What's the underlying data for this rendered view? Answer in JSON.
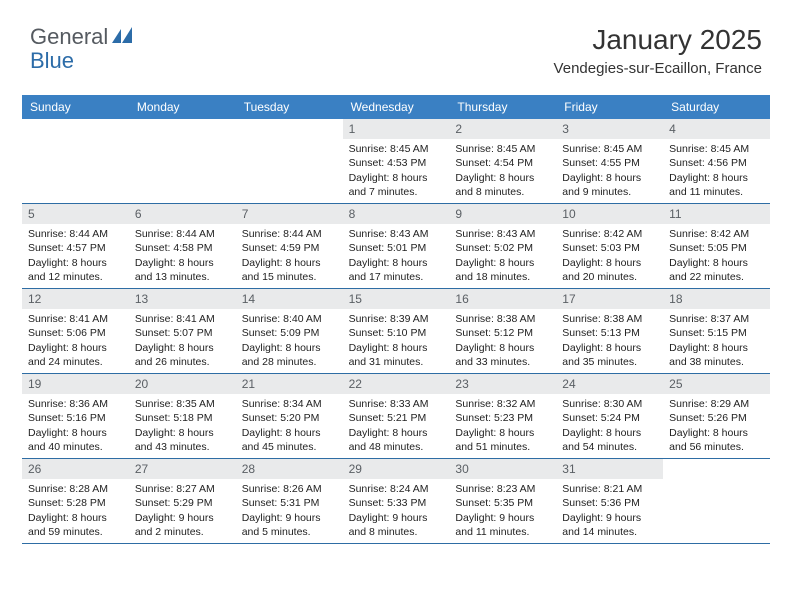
{
  "logo": {
    "general": "General",
    "blue": "Blue"
  },
  "title": "January 2025",
  "location": "Vendegies-sur-Ecaillon, France",
  "colors": {
    "header_bg": "#3a80c3",
    "header_text": "#ffffff",
    "daynum_bg": "#e9eaeb",
    "daynum_text": "#5a5f64",
    "border": "#2e6da4",
    "body_text": "#222222",
    "logo_gray": "#555a60",
    "logo_blue": "#2c6ca8"
  },
  "typography": {
    "title_fontsize": 28,
    "location_fontsize": 15,
    "dayheader_fontsize": 12,
    "daynum_fontsize": 12,
    "cell_fontsize": 10.5
  },
  "dayNames": [
    "Sunday",
    "Monday",
    "Tuesday",
    "Wednesday",
    "Thursday",
    "Friday",
    "Saturday"
  ],
  "weeks": [
    [
      {
        "n": "",
        "sr": "",
        "ss": "",
        "dl": ""
      },
      {
        "n": "",
        "sr": "",
        "ss": "",
        "dl": ""
      },
      {
        "n": "",
        "sr": "",
        "ss": "",
        "dl": ""
      },
      {
        "n": "1",
        "sr": "Sunrise: 8:45 AM",
        "ss": "Sunset: 4:53 PM",
        "dl": "Daylight: 8 hours and 7 minutes."
      },
      {
        "n": "2",
        "sr": "Sunrise: 8:45 AM",
        "ss": "Sunset: 4:54 PM",
        "dl": "Daylight: 8 hours and 8 minutes."
      },
      {
        "n": "3",
        "sr": "Sunrise: 8:45 AM",
        "ss": "Sunset: 4:55 PM",
        "dl": "Daylight: 8 hours and 9 minutes."
      },
      {
        "n": "4",
        "sr": "Sunrise: 8:45 AM",
        "ss": "Sunset: 4:56 PM",
        "dl": "Daylight: 8 hours and 11 minutes."
      }
    ],
    [
      {
        "n": "5",
        "sr": "Sunrise: 8:44 AM",
        "ss": "Sunset: 4:57 PM",
        "dl": "Daylight: 8 hours and 12 minutes."
      },
      {
        "n": "6",
        "sr": "Sunrise: 8:44 AM",
        "ss": "Sunset: 4:58 PM",
        "dl": "Daylight: 8 hours and 13 minutes."
      },
      {
        "n": "7",
        "sr": "Sunrise: 8:44 AM",
        "ss": "Sunset: 4:59 PM",
        "dl": "Daylight: 8 hours and 15 minutes."
      },
      {
        "n": "8",
        "sr": "Sunrise: 8:43 AM",
        "ss": "Sunset: 5:01 PM",
        "dl": "Daylight: 8 hours and 17 minutes."
      },
      {
        "n": "9",
        "sr": "Sunrise: 8:43 AM",
        "ss": "Sunset: 5:02 PM",
        "dl": "Daylight: 8 hours and 18 minutes."
      },
      {
        "n": "10",
        "sr": "Sunrise: 8:42 AM",
        "ss": "Sunset: 5:03 PM",
        "dl": "Daylight: 8 hours and 20 minutes."
      },
      {
        "n": "11",
        "sr": "Sunrise: 8:42 AM",
        "ss": "Sunset: 5:05 PM",
        "dl": "Daylight: 8 hours and 22 minutes."
      }
    ],
    [
      {
        "n": "12",
        "sr": "Sunrise: 8:41 AM",
        "ss": "Sunset: 5:06 PM",
        "dl": "Daylight: 8 hours and 24 minutes."
      },
      {
        "n": "13",
        "sr": "Sunrise: 8:41 AM",
        "ss": "Sunset: 5:07 PM",
        "dl": "Daylight: 8 hours and 26 minutes."
      },
      {
        "n": "14",
        "sr": "Sunrise: 8:40 AM",
        "ss": "Sunset: 5:09 PM",
        "dl": "Daylight: 8 hours and 28 minutes."
      },
      {
        "n": "15",
        "sr": "Sunrise: 8:39 AM",
        "ss": "Sunset: 5:10 PM",
        "dl": "Daylight: 8 hours and 31 minutes."
      },
      {
        "n": "16",
        "sr": "Sunrise: 8:38 AM",
        "ss": "Sunset: 5:12 PM",
        "dl": "Daylight: 8 hours and 33 minutes."
      },
      {
        "n": "17",
        "sr": "Sunrise: 8:38 AM",
        "ss": "Sunset: 5:13 PM",
        "dl": "Daylight: 8 hours and 35 minutes."
      },
      {
        "n": "18",
        "sr": "Sunrise: 8:37 AM",
        "ss": "Sunset: 5:15 PM",
        "dl": "Daylight: 8 hours and 38 minutes."
      }
    ],
    [
      {
        "n": "19",
        "sr": "Sunrise: 8:36 AM",
        "ss": "Sunset: 5:16 PM",
        "dl": "Daylight: 8 hours and 40 minutes."
      },
      {
        "n": "20",
        "sr": "Sunrise: 8:35 AM",
        "ss": "Sunset: 5:18 PM",
        "dl": "Daylight: 8 hours and 43 minutes."
      },
      {
        "n": "21",
        "sr": "Sunrise: 8:34 AM",
        "ss": "Sunset: 5:20 PM",
        "dl": "Daylight: 8 hours and 45 minutes."
      },
      {
        "n": "22",
        "sr": "Sunrise: 8:33 AM",
        "ss": "Sunset: 5:21 PM",
        "dl": "Daylight: 8 hours and 48 minutes."
      },
      {
        "n": "23",
        "sr": "Sunrise: 8:32 AM",
        "ss": "Sunset: 5:23 PM",
        "dl": "Daylight: 8 hours and 51 minutes."
      },
      {
        "n": "24",
        "sr": "Sunrise: 8:30 AM",
        "ss": "Sunset: 5:24 PM",
        "dl": "Daylight: 8 hours and 54 minutes."
      },
      {
        "n": "25",
        "sr": "Sunrise: 8:29 AM",
        "ss": "Sunset: 5:26 PM",
        "dl": "Daylight: 8 hours and 56 minutes."
      }
    ],
    [
      {
        "n": "26",
        "sr": "Sunrise: 8:28 AM",
        "ss": "Sunset: 5:28 PM",
        "dl": "Daylight: 8 hours and 59 minutes."
      },
      {
        "n": "27",
        "sr": "Sunrise: 8:27 AM",
        "ss": "Sunset: 5:29 PM",
        "dl": "Daylight: 9 hours and 2 minutes."
      },
      {
        "n": "28",
        "sr": "Sunrise: 8:26 AM",
        "ss": "Sunset: 5:31 PM",
        "dl": "Daylight: 9 hours and 5 minutes."
      },
      {
        "n": "29",
        "sr": "Sunrise: 8:24 AM",
        "ss": "Sunset: 5:33 PM",
        "dl": "Daylight: 9 hours and 8 minutes."
      },
      {
        "n": "30",
        "sr": "Sunrise: 8:23 AM",
        "ss": "Sunset: 5:35 PM",
        "dl": "Daylight: 9 hours and 11 minutes."
      },
      {
        "n": "31",
        "sr": "Sunrise: 8:21 AM",
        "ss": "Sunset: 5:36 PM",
        "dl": "Daylight: 9 hours and 14 minutes."
      },
      {
        "n": "",
        "sr": "",
        "ss": "",
        "dl": ""
      }
    ]
  ]
}
